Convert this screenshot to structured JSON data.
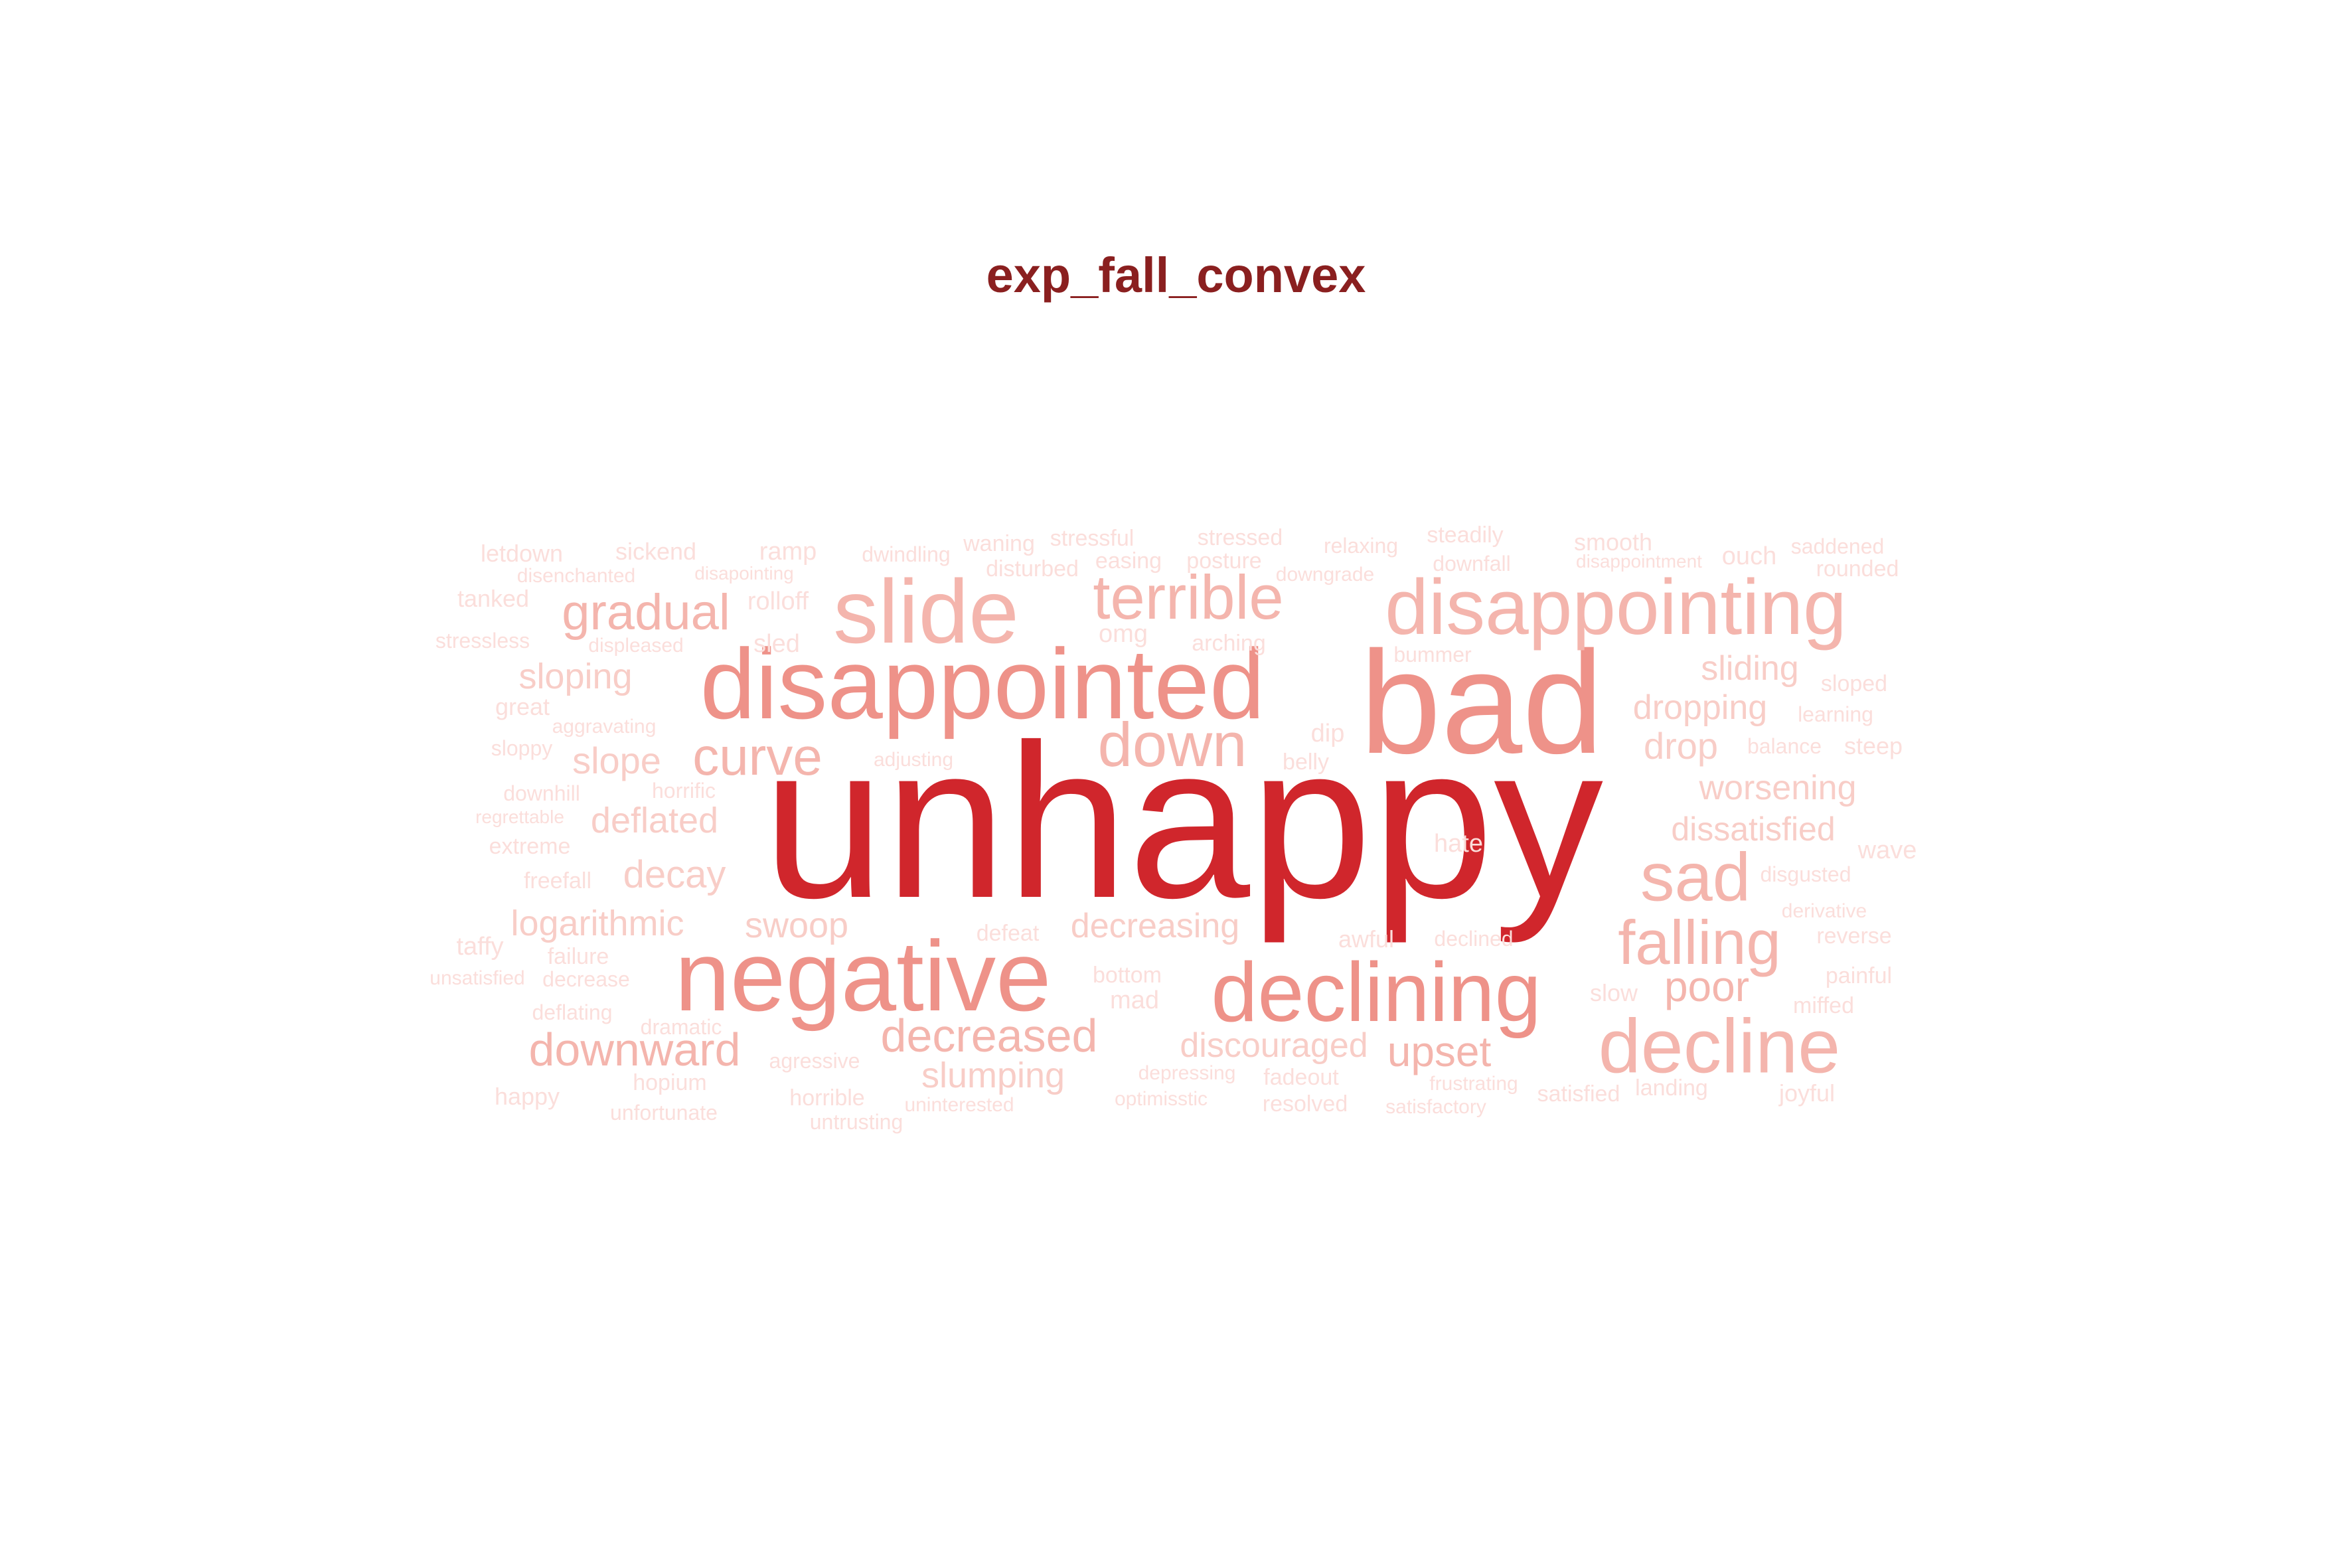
{
  "title": "exp_fall_convex",
  "colors": {
    "title": "#8a1f1f",
    "level1": "#d0262c",
    "level2": "#ee9289",
    "level3": "#f4b5ad",
    "level4": "#f8cdc7",
    "level5": "#fbdedb"
  },
  "words": [
    {
      "text": "unhappy",
      "color": "#d0262c"
    },
    {
      "text": "bad",
      "color": "#ee9289"
    },
    {
      "text": "disappointed",
      "color": "#ee9289"
    },
    {
      "text": "negative",
      "color": "#ee9289"
    },
    {
      "text": "declining",
      "color": "#ee9289"
    },
    {
      "text": "disappointing",
      "color": "#f4b5ad"
    },
    {
      "text": "decline",
      "color": "#f4b5ad"
    },
    {
      "text": "slide",
      "color": "#f4b5ad"
    },
    {
      "text": "terrible",
      "color": "#f4b5ad"
    },
    {
      "text": "down",
      "color": "#f4b5ad"
    },
    {
      "text": "sad",
      "color": "#f4b5ad"
    },
    {
      "text": "falling",
      "color": "#f4b5ad"
    },
    {
      "text": "curve",
      "color": "#f4b5ad"
    },
    {
      "text": "gradual",
      "color": "#f4b5ad"
    },
    {
      "text": "decreased",
      "color": "#f4b5ad"
    },
    {
      "text": "downward",
      "color": "#f4b5ad"
    },
    {
      "text": "poor",
      "color": "#f4b5ad"
    },
    {
      "text": "upset",
      "color": "#f4b5ad"
    },
    {
      "text": "sloping",
      "color": "#f8cdc7"
    },
    {
      "text": "slope",
      "color": "#f8cdc7"
    },
    {
      "text": "deflated",
      "color": "#f8cdc7"
    },
    {
      "text": "decay",
      "color": "#f8cdc7"
    },
    {
      "text": "logarithmic",
      "color": "#f8cdc7"
    },
    {
      "text": "swoop",
      "color": "#f8cdc7"
    },
    {
      "text": "decreasing",
      "color": "#f8cdc7"
    },
    {
      "text": "slumping",
      "color": "#f8cdc7"
    },
    {
      "text": "discouraged",
      "color": "#f8cdc7"
    },
    {
      "text": "sliding",
      "color": "#f8cdc7"
    },
    {
      "text": "dropping",
      "color": "#f8cdc7"
    },
    {
      "text": "drop",
      "color": "#f8cdc7"
    },
    {
      "text": "worsening",
      "color": "#f8cdc7"
    },
    {
      "text": "dissatisfied",
      "color": "#f8cdc7"
    },
    {
      "text": "letdown",
      "color": "#fbdedb"
    },
    {
      "text": "sickend",
      "color": "#fbdedb"
    },
    {
      "text": "ramp",
      "color": "#fbdedb"
    },
    {
      "text": "dwindling",
      "color": "#fbdedb"
    },
    {
      "text": "waning",
      "color": "#fbdedb"
    },
    {
      "text": "stressful",
      "color": "#fbdedb"
    },
    {
      "text": "stressed",
      "color": "#fbdedb"
    },
    {
      "text": "relaxing",
      "color": "#fbdedb"
    },
    {
      "text": "steadily",
      "color": "#fbdedb"
    },
    {
      "text": "smooth",
      "color": "#fbdedb"
    },
    {
      "text": "saddened",
      "color": "#fbdedb"
    },
    {
      "text": "disenchanted",
      "color": "#fbdedb"
    },
    {
      "text": "disapointing",
      "color": "#fbdedb"
    },
    {
      "text": "disturbed",
      "color": "#fbdedb"
    },
    {
      "text": "easing",
      "color": "#fbdedb"
    },
    {
      "text": "posture",
      "color": "#fbdedb"
    },
    {
      "text": "downgrade",
      "color": "#fbdedb"
    },
    {
      "text": "downfall",
      "color": "#fbdedb"
    },
    {
      "text": "disappointment",
      "color": "#fbdedb"
    },
    {
      "text": "ouch",
      "color": "#fbdedb"
    },
    {
      "text": "rounded",
      "color": "#fbdedb"
    },
    {
      "text": "tanked",
      "color": "#fbdedb"
    },
    {
      "text": "rolloff",
      "color": "#fbdedb"
    },
    {
      "text": "stressless",
      "color": "#fbdedb"
    },
    {
      "text": "displeased",
      "color": "#fbdedb"
    },
    {
      "text": "sled",
      "color": "#fbdedb"
    },
    {
      "text": "omg",
      "color": "#fbdedb"
    },
    {
      "text": "arching",
      "color": "#fbdedb"
    },
    {
      "text": "bummer",
      "color": "#fbdedb"
    },
    {
      "text": "sloped",
      "color": "#fbdedb"
    },
    {
      "text": "great",
      "color": "#fbdedb"
    },
    {
      "text": "learning",
      "color": "#fbdedb"
    },
    {
      "text": "aggravating",
      "color": "#fbdedb"
    },
    {
      "text": "sloppy",
      "color": "#fbdedb"
    },
    {
      "text": "adjusting",
      "color": "#fbdedb"
    },
    {
      "text": "belly",
      "color": "#fbdedb"
    },
    {
      "text": "balance",
      "color": "#fbdedb"
    },
    {
      "text": "steep",
      "color": "#fbdedb"
    },
    {
      "text": "downhill",
      "color": "#fbdedb"
    },
    {
      "text": "horrific",
      "color": "#fbdedb"
    },
    {
      "text": "regrettable",
      "color": "#fbdedb"
    },
    {
      "text": "extreme",
      "color": "#fbdedb"
    },
    {
      "text": "hate",
      "color": "#fbdedb"
    },
    {
      "text": "wave",
      "color": "#fbdedb"
    },
    {
      "text": "disgusted",
      "color": "#fbdedb"
    },
    {
      "text": "freefall",
      "color": "#fbdedb"
    },
    {
      "text": "derivative",
      "color": "#fbdedb"
    },
    {
      "text": "defeat",
      "color": "#fbdedb"
    },
    {
      "text": "taffy",
      "color": "#fbdedb"
    },
    {
      "text": "failure",
      "color": "#fbdedb"
    },
    {
      "text": "awful",
      "color": "#fbdedb"
    },
    {
      "text": "declined",
      "color": "#fbdedb"
    },
    {
      "text": "reverse",
      "color": "#fbdedb"
    },
    {
      "text": "unsatisfied",
      "color": "#fbdedb"
    },
    {
      "text": "decrease",
      "color": "#fbdedb"
    },
    {
      "text": "bottom",
      "color": "#fbdedb"
    },
    {
      "text": "painful",
      "color": "#fbdedb"
    },
    {
      "text": "mad",
      "color": "#fbdedb"
    },
    {
      "text": "slow",
      "color": "#fbdedb"
    },
    {
      "text": "miffed",
      "color": "#fbdedb"
    },
    {
      "text": "deflating",
      "color": "#fbdedb"
    },
    {
      "text": "dramatic",
      "color": "#fbdedb"
    },
    {
      "text": "agressive",
      "color": "#fbdedb"
    },
    {
      "text": "hopium",
      "color": "#fbdedb"
    },
    {
      "text": "depressing",
      "color": "#fbdedb"
    },
    {
      "text": "fadeout",
      "color": "#fbdedb"
    },
    {
      "text": "frustrating",
      "color": "#fbdedb"
    },
    {
      "text": "satisfied",
      "color": "#fbdedb"
    },
    {
      "text": "landing",
      "color": "#fbdedb"
    },
    {
      "text": "joyful",
      "color": "#fbdedb"
    },
    {
      "text": "happy",
      "color": "#fbdedb"
    },
    {
      "text": "horrible",
      "color": "#fbdedb"
    },
    {
      "text": "unfortunate",
      "color": "#fbdedb"
    },
    {
      "text": "uninterested",
      "color": "#fbdedb"
    },
    {
      "text": "optimisstic",
      "color": "#fbdedb"
    },
    {
      "text": "resolved",
      "color": "#fbdedb"
    },
    {
      "text": "satisfactory",
      "color": "#fbdedb"
    },
    {
      "text": "untrusting",
      "color": "#fbdedb"
    },
    {
      "text": "dip",
      "color": "#fbdedb"
    }
  ]
}
